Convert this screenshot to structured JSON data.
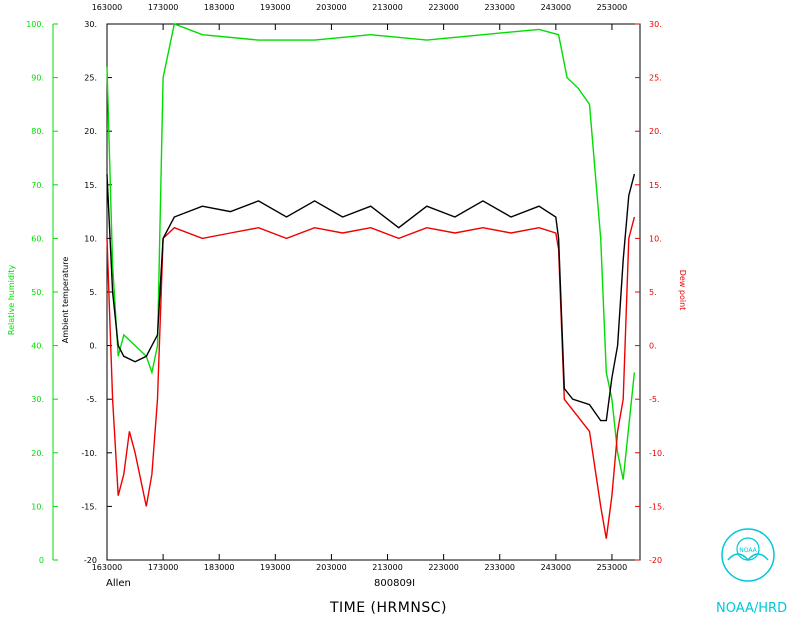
{
  "colors": {
    "humidity": "#00dd00",
    "temperature": "#000000",
    "dewpoint": "#ee0000",
    "brand": "#00c8d8"
  },
  "labels": {
    "storm": "Allen",
    "flight": "800809I",
    "xtitle": "TIME (HRMNSC)",
    "brand": "NOAA/HRD",
    "logo_text": "NOAA"
  },
  "chart_data": {
    "type": "line",
    "xlabel": "TIME (HRMNSC)",
    "x_ticks": [
      "163000",
      "173000",
      "183000",
      "193000",
      "203000",
      "213000",
      "223000",
      "233000",
      "243000",
      "253000"
    ],
    "x_tick_values": [
      163000,
      173000,
      183000,
      193000,
      203000,
      213000,
      223000,
      233000,
      243000,
      253000
    ],
    "xlim": [
      163000,
      258000
    ],
    "left_axis_outer": {
      "label": "Relative humidity",
      "ylim": [
        0,
        100
      ],
      "ticks": [
        "0",
        "10.",
        "20.",
        "30.",
        "40.",
        "50.",
        "60.",
        "70.",
        "80.",
        "90.",
        "100."
      ]
    },
    "left_axis_inner": {
      "label": "Ambient temperature",
      "ylim": [
        -20,
        30
      ],
      "ticks": [
        "-20",
        "-15.",
        "-10.",
        "-5.",
        "0.",
        "5.",
        "10.",
        "15.",
        "20.",
        "25.",
        "30."
      ]
    },
    "right_axis": {
      "label": "Dew point",
      "ylim": [
        -20,
        30
      ],
      "ticks": [
        "-20",
        "-15.",
        "-10.",
        "-5.",
        "0.",
        "5.",
        "10.",
        "15.",
        "20.",
        "25.",
        "30."
      ]
    },
    "series": [
      {
        "name": "Relative humidity",
        "axis": "humidity",
        "x": [
          163000,
          164000,
          165000,
          166000,
          168000,
          170000,
          171000,
          172000,
          173000,
          174000,
          175000,
          180000,
          190000,
          200000,
          210000,
          220000,
          230000,
          240000,
          243500,
          245000,
          247000,
          249000,
          251000,
          252000,
          253000,
          254000,
          255000,
          256000,
          257000
        ],
        "y": [
          92,
          55,
          38,
          42,
          40,
          38,
          35,
          40,
          90,
          95,
          100,
          98,
          97,
          97,
          98,
          97,
          98,
          99,
          98,
          90,
          88,
          85,
          60,
          35,
          30,
          20,
          15,
          25,
          35
        ]
      },
      {
        "name": "Ambient temperature",
        "axis": "temperature",
        "x": [
          163000,
          164000,
          165000,
          166000,
          168000,
          170000,
          171000,
          172000,
          173000,
          175000,
          180000,
          185000,
          190000,
          195000,
          200000,
          205000,
          210000,
          215000,
          220000,
          225000,
          230000,
          235000,
          240000,
          243000,
          243500,
          244500,
          246000,
          249000,
          251000,
          252000,
          253000,
          254000,
          255000,
          256000,
          257000
        ],
        "y": [
          16,
          5,
          0,
          -1,
          -1.5,
          -1,
          0,
          1,
          10,
          12,
          13,
          12.5,
          13.5,
          12,
          13.5,
          12,
          13,
          11,
          13,
          12,
          13.5,
          12,
          13,
          12,
          10,
          -4,
          -5,
          -5.5,
          -7,
          -7,
          -3,
          0,
          8,
          14,
          16
        ]
      },
      {
        "name": "Dew point",
        "axis": "dewpoint",
        "x": [
          163000,
          164000,
          165000,
          166000,
          167000,
          168000,
          170000,
          171000,
          172000,
          173000,
          175000,
          180000,
          185000,
          190000,
          195000,
          200000,
          205000,
          210000,
          215000,
          220000,
          225000,
          230000,
          235000,
          240000,
          243000,
          243500,
          244500,
          246000,
          249000,
          251000,
          252000,
          253000,
          254000,
          255000,
          256000,
          257000
        ],
        "y": [
          10,
          -5,
          -14,
          -12,
          -8,
          -10,
          -15,
          -12,
          -5,
          10,
          11,
          10,
          10.5,
          11,
          10,
          11,
          10.5,
          11,
          10,
          11,
          10.5,
          11,
          10.5,
          11,
          10.5,
          9,
          -5,
          -6,
          -8,
          -15,
          -18,
          -14,
          -8,
          -5,
          10,
          12
        ]
      }
    ]
  }
}
